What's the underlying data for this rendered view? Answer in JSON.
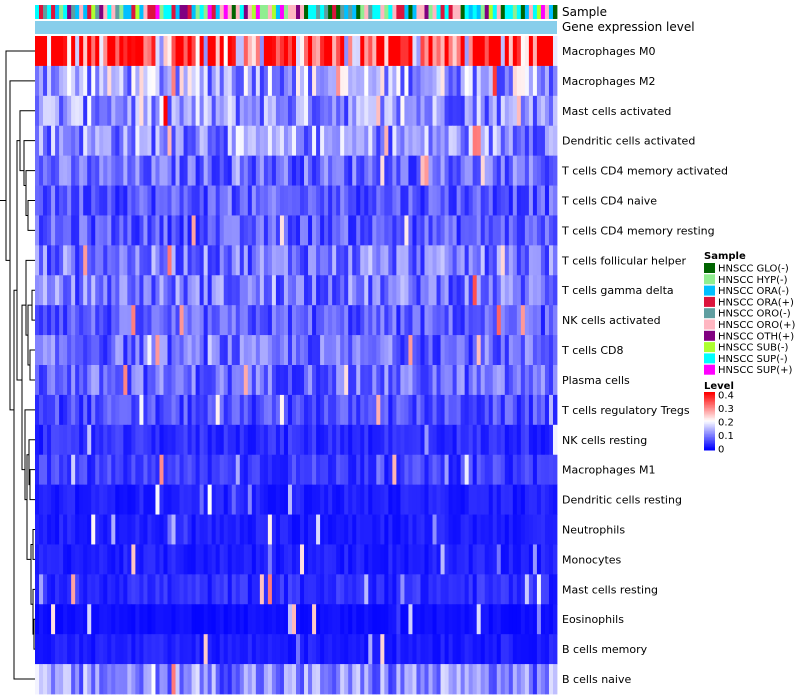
{
  "chart_data": {
    "type": "heatmap",
    "title": "",
    "annotation_labels": [
      "Sample",
      "Gene expression level"
    ],
    "rows": [
      {
        "label": "Macrophages M0",
        "mean": 0.3
      },
      {
        "label": "Macrophages M2",
        "mean": 0.12
      },
      {
        "label": "Mast cells activated",
        "mean": 0.1
      },
      {
        "label": "Dendritic cells activated",
        "mean": 0.1
      },
      {
        "label": "T cells CD4 memory activated",
        "mean": 0.07
      },
      {
        "label": "T cells CD4 naive",
        "mean": 0.06
      },
      {
        "label": "T cells CD4 memory resting",
        "mean": 0.06
      },
      {
        "label": "T cells follicular helper",
        "mean": 0.08
      },
      {
        "label": "T cells gamma delta",
        "mean": 0.08
      },
      {
        "label": "NK cells activated",
        "mean": 0.06
      },
      {
        "label": "T cells CD8",
        "mean": 0.07
      },
      {
        "label": "Plasma cells",
        "mean": 0.07
      },
      {
        "label": "T cells regulatory  Tregs",
        "mean": 0.05
      },
      {
        "label": "NK cells resting",
        "mean": 0.03
      },
      {
        "label": "Macrophages M1",
        "mean": 0.04
      },
      {
        "label": "Dendritic cells resting",
        "mean": 0.02
      },
      {
        "label": "Neutrophils",
        "mean": 0.02
      },
      {
        "label": "Monocytes",
        "mean": 0.02
      },
      {
        "label": "Mast cells resting",
        "mean": 0.03
      },
      {
        "label": "Eosinophils",
        "mean": 0.01
      },
      {
        "label": "B cells memory",
        "mean": 0.02
      },
      {
        "label": "B cells naive",
        "mean": 0.09
      }
    ],
    "n_samples": 130,
    "color_scale": {
      "title": "Level",
      "min": 0,
      "max": 0.4,
      "ticks": [
        "0.4",
        "0.3",
        "0.2",
        "0.1",
        "0"
      ],
      "colors": {
        "low": "#0000ff",
        "mid": "#ffffff",
        "high": "#ff0000"
      }
    },
    "sample_legend": {
      "title": "Sample",
      "entries": [
        {
          "label": "HNSCC GLO(-)",
          "color": "#006400"
        },
        {
          "label": "HNSCC HYP(-)",
          "color": "#90ee90"
        },
        {
          "label": "HNSCC ORA(-)",
          "color": "#00bfff"
        },
        {
          "label": "HNSCC ORA(+)",
          "color": "#dc143c"
        },
        {
          "label": "HNSCC ORO(-)",
          "color": "#5f9ea0"
        },
        {
          "label": "HNSCC ORO(+)",
          "color": "#ffb6c1"
        },
        {
          "label": "HNSCC OTH(+)",
          "color": "#800080"
        },
        {
          "label": "HNSCC SUB(-)",
          "color": "#adff2f"
        },
        {
          "label": "HNSCC SUP(-)",
          "color": "#00ffff"
        },
        {
          "label": "HNSCC SUP(+)",
          "color": "#ff00ff"
        }
      ]
    },
    "gene_expression_color": "#87ceeb"
  }
}
